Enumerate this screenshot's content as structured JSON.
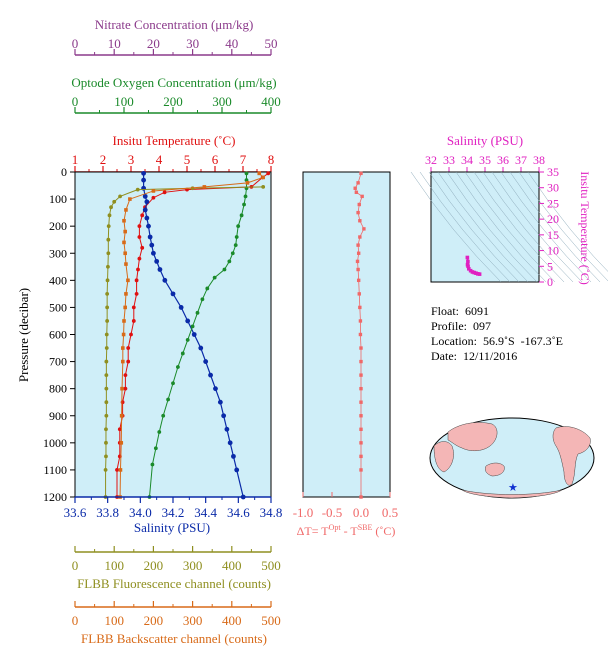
{
  "colors": {
    "nitrate": "#8b3a8b",
    "oxygen": "#1a8a2a",
    "temperature": "#e01010",
    "salinity": "#0a2aa8",
    "fluorescence": "#8f8f20",
    "backscatter": "#d86a18",
    "delta": "#f06868",
    "ts": "#e020c0",
    "plot_bg": "#cfeef8",
    "land": "#f4b6b6"
  },
  "labels": {
    "nitrate_title": "Nitrate Concentration (μm/kg)",
    "oxygen_title": "Optode Oxygen Concentration (μm/kg)",
    "temp_title": "Insitu Temperature (˚C)",
    "salinity_title": "Salinity (PSU)",
    "pressure_title": "Pressure (decibar)",
    "fluor_title": "FLBB Fluorescence channel (counts)",
    "backscatter_title": "FLBB Backscatter channel (counts)",
    "delta_title_main": "ΔT= T",
    "delta_sup1": "Opt",
    "delta_mid": " - T",
    "delta_sup2": "SBE",
    "delta_unit": " (˚C)",
    "ts_top_title": "Salinity (PSU)",
    "ts_right_title": "Insitu Temperature (˚C)"
  },
  "info": {
    "float": "Float:  6091",
    "profile": "Profile:  097",
    "location": "Location:  56.9˚S  -167.3˚E",
    "date": "Date:  12/11/2016"
  },
  "chart_data": [
    {
      "type": "line",
      "name": "main-profile",
      "ylabel": "Pressure (decibar)",
      "ylim": [
        1200,
        0
      ],
      "y_ticks": [
        "0",
        "100",
        "200",
        "300",
        "400",
        "500",
        "600",
        "700",
        "800",
        "900",
        "1000",
        "1100",
        "1200"
      ],
      "axes": {
        "nitrate": {
          "label": "Nitrate Concentration (μm/kg)",
          "lim": [
            0,
            50
          ],
          "ticks": [
            "0",
            "10",
            "20",
            "30",
            "40",
            "50"
          ]
        },
        "oxygen": {
          "label": "Optode Oxygen Concentration (μm/kg)",
          "lim": [
            0,
            400
          ],
          "ticks": [
            "0",
            "100",
            "200",
            "300",
            "400"
          ]
        },
        "temperature": {
          "label": "Insitu Temperature (˚C)",
          "lim": [
            1,
            8
          ],
          "ticks": [
            "1",
            "2",
            "3",
            "4",
            "5",
            "6",
            "7",
            "8"
          ]
        },
        "salinity": {
          "label": "Salinity (PSU)",
          "lim": [
            33.6,
            34.8
          ],
          "ticks": [
            "33.6",
            "33.8",
            "34.0",
            "34.2",
            "34.4",
            "34.6",
            "34.8"
          ]
        },
        "fluorescence": {
          "label": "FLBB Fluorescence channel (counts)",
          "lim": [
            0,
            500
          ],
          "ticks": [
            "0",
            "100",
            "200",
            "300",
            "400",
            "500"
          ]
        },
        "backscatter": {
          "label": "FLBB Backscatter channel (counts)",
          "lim": [
            0,
            500
          ],
          "ticks": [
            "0",
            "100",
            "200",
            "300",
            "400",
            "500"
          ]
        }
      },
      "series": [
        {
          "key": "temperature",
          "axis": "temperature",
          "points": [
            [
              7.9,
              5
            ],
            [
              7.7,
              20
            ],
            [
              7.3,
              55
            ],
            [
              5.0,
              65
            ],
            [
              4.2,
              75
            ],
            [
              3.8,
              95
            ],
            [
              3.5,
              130
            ],
            [
              3.4,
              160
            ],
            [
              3.3,
              200
            ],
            [
              3.3,
              240
            ],
            [
              3.4,
              280
            ],
            [
              3.3,
              320
            ],
            [
              3.25,
              360
            ],
            [
              3.2,
              400
            ],
            [
              3.2,
              450
            ],
            [
              3.1,
              500
            ],
            [
              3.1,
              550
            ],
            [
              3.0,
              600
            ],
            [
              2.9,
              650
            ],
            [
              2.9,
              700
            ],
            [
              2.8,
              750
            ],
            [
              2.8,
              800
            ],
            [
              2.7,
              850
            ],
            [
              2.7,
              900
            ],
            [
              2.6,
              950
            ],
            [
              2.6,
              1000
            ],
            [
              2.6,
              1050
            ],
            [
              2.5,
              1100
            ],
            [
              2.5,
              1200
            ]
          ]
        },
        {
          "key": "salinity",
          "axis": "salinity",
          "points": [
            [
              34.02,
              5
            ],
            [
              34.02,
              30
            ],
            [
              34.02,
              60
            ],
            [
              34.03,
              90
            ],
            [
              34.04,
              110
            ],
            [
              34.03,
              140
            ],
            [
              34.04,
              170
            ],
            [
              34.05,
              200
            ],
            [
              34.06,
              240
            ],
            [
              34.07,
              270
            ],
            [
              34.08,
              300
            ],
            [
              34.1,
              330
            ],
            [
              34.12,
              360
            ],
            [
              34.15,
              400
            ],
            [
              34.2,
              450
            ],
            [
              34.25,
              500
            ],
            [
              34.29,
              550
            ],
            [
              34.33,
              600
            ],
            [
              34.37,
              650
            ],
            [
              34.4,
              700
            ],
            [
              34.43,
              750
            ],
            [
              34.46,
              800
            ],
            [
              34.49,
              850
            ],
            [
              34.51,
              900
            ],
            [
              34.53,
              950
            ],
            [
              34.55,
              1000
            ],
            [
              34.57,
              1050
            ],
            [
              34.59,
              1100
            ],
            [
              34.63,
              1200
            ]
          ]
        },
        {
          "key": "oxygen",
          "axis": "oxygen",
          "points": [
            [
              350,
              5
            ],
            [
              350,
              30
            ],
            [
              350,
              60
            ],
            [
              348,
              90
            ],
            [
              345,
              120
            ],
            [
              340,
              160
            ],
            [
              333,
              200
            ],
            [
              330,
              240
            ],
            [
              328,
              270
            ],
            [
              322,
              300
            ],
            [
              315,
              330
            ],
            [
              305,
              360
            ],
            [
              285,
              390
            ],
            [
              270,
              430
            ],
            [
              260,
              470
            ],
            [
              250,
              520
            ],
            [
              240,
              570
            ],
            [
              230,
              620
            ],
            [
              220,
              670
            ],
            [
              210,
              720
            ],
            [
              200,
              780
            ],
            [
              190,
              840
            ],
            [
              180,
              900
            ],
            [
              172,
              960
            ],
            [
              165,
              1020
            ],
            [
              158,
              1080
            ],
            [
              152,
              1200
            ]
          ]
        },
        {
          "key": "fluorescence",
          "axis": "fluorescence",
          "points": [
            [
              480,
              55
            ],
            [
              300,
              60
            ],
            [
              160,
              65
            ],
            [
              115,
              90
            ],
            [
              100,
              110
            ],
            [
              92,
              130
            ],
            [
              88,
              160
            ],
            [
              86,
              200
            ],
            [
              85,
              250
            ],
            [
              85,
              300
            ],
            [
              84,
              350
            ],
            [
              83,
              400
            ],
            [
              82,
              450
            ],
            [
              82,
              500
            ],
            [
              82,
              550
            ],
            [
              81,
              600
            ],
            [
              81,
              650
            ],
            [
              80,
              700
            ],
            [
              80,
              750
            ],
            [
              80,
              800
            ],
            [
              80,
              850
            ],
            [
              80,
              900
            ],
            [
              79,
              950
            ],
            [
              79,
              1000
            ],
            [
              79,
              1050
            ],
            [
              78,
              1100
            ],
            [
              78,
              1200
            ]
          ]
        },
        {
          "key": "backscatter",
          "axis": "backscatter",
          "points": [
            [
              470,
              5
            ],
            [
              480,
              20
            ],
            [
              440,
              40
            ],
            [
              330,
              55
            ],
            [
              200,
              70
            ],
            [
              140,
              100
            ],
            [
              130,
              140
            ],
            [
              125,
              180
            ],
            [
              128,
              220
            ],
            [
              125,
              260
            ],
            [
              128,
              300
            ],
            [
              130,
              340
            ],
            [
              135,
              400
            ],
            [
              130,
              450
            ],
            [
              128,
              500
            ],
            [
              125,
              550
            ],
            [
              124,
              600
            ],
            [
              122,
              650
            ],
            [
              122,
              700
            ],
            [
              120,
              800
            ],
            [
              119,
              900
            ],
            [
              118,
              1000
            ],
            [
              116,
              1100
            ],
            [
              115,
              1200
            ]
          ]
        }
      ]
    },
    {
      "type": "scatter",
      "name": "delta-t",
      "xlabel": "ΔT= T Opt - T SBE (˚C)",
      "xlim": [
        -1.0,
        0.5
      ],
      "x_ticks": [
        "-1.0",
        "-0.5",
        "0.0",
        "0.5"
      ],
      "ylim": [
        1200,
        0
      ],
      "points": [
        [
          0.0,
          5
        ],
        [
          -0.05,
          40
        ],
        [
          -0.1,
          60
        ],
        [
          -0.08,
          75
        ],
        [
          0.02,
          90
        ],
        [
          -0.03,
          120
        ],
        [
          -0.05,
          150
        ],
        [
          -0.02,
          180
        ],
        [
          0.05,
          210
        ],
        [
          -0.02,
          240
        ],
        [
          -0.05,
          270
        ],
        [
          -0.04,
          300
        ],
        [
          -0.06,
          330
        ],
        [
          -0.05,
          360
        ],
        [
          -0.04,
          400
        ],
        [
          -0.03,
          450
        ],
        [
          -0.02,
          500
        ],
        [
          -0.01,
          550
        ],
        [
          -0.01,
          600
        ],
        [
          0.0,
          650
        ],
        [
          0.0,
          700
        ],
        [
          0.0,
          750
        ],
        [
          0.0,
          800
        ],
        [
          0.0,
          850
        ],
        [
          0.0,
          900
        ],
        [
          0.0,
          950
        ],
        [
          0.0,
          1000
        ],
        [
          0.0,
          1050
        ],
        [
          0.0,
          1100
        ],
        [
          0.0,
          1200
        ]
      ]
    },
    {
      "type": "scatter",
      "name": "ts-diagram",
      "xlabel": "Salinity (PSU)",
      "ylabel": "Insitu Temperature (˚C)",
      "xlim": [
        32,
        38
      ],
      "ylim": [
        0,
        35
      ],
      "x_ticks": [
        "32",
        "33",
        "34",
        "35",
        "36",
        "37",
        "38"
      ],
      "y_ticks": [
        "0",
        "5",
        "10",
        "15",
        "20",
        "25",
        "30",
        "35"
      ],
      "points": [
        [
          34.02,
          7.8
        ],
        [
          34.05,
          6.5
        ],
        [
          34.03,
          5.5
        ],
        [
          34.06,
          5.0
        ],
        [
          34.1,
          4.2
        ],
        [
          34.2,
          3.6
        ],
        [
          34.3,
          3.2
        ],
        [
          34.4,
          3.0
        ],
        [
          34.5,
          2.8
        ],
        [
          34.6,
          2.6
        ],
        [
          34.7,
          2.5
        ]
      ]
    }
  ]
}
